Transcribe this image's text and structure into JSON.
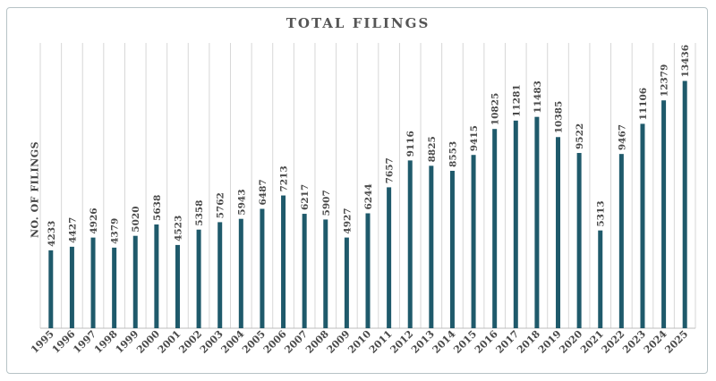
{
  "chart_data": {
    "type": "bar",
    "title": "TOTAL FILINGS",
    "xlabel": "",
    "ylabel": "NO. OF FILINGS",
    "ylim": [
      0,
      15500
    ],
    "grid": "vertical",
    "legend": "none",
    "bar_color": "#1f5a6b",
    "grid_color": "#d7d7d7",
    "categories": [
      "1995",
      "1996",
      "1997",
      "1998",
      "1999",
      "2000",
      "2001",
      "2002",
      "2003",
      "2004",
      "2005",
      "2006",
      "2007",
      "2008",
      "2009",
      "2010",
      "2011",
      "2012",
      "2013",
      "2014",
      "2015",
      "2016",
      "2017",
      "2018",
      "2019",
      "2020",
      "2021",
      "2022",
      "2023",
      "2024",
      "2025"
    ],
    "values": [
      4233,
      4427,
      4926,
      4379,
      5020,
      5638,
      4523,
      5358,
      5762,
      5943,
      6487,
      7213,
      6217,
      5907,
      4927,
      6244,
      7657,
      9116,
      8825,
      8553,
      9415,
      10825,
      11281,
      11483,
      10385,
      9522,
      5313,
      9467,
      11106,
      12379,
      13436
    ]
  }
}
